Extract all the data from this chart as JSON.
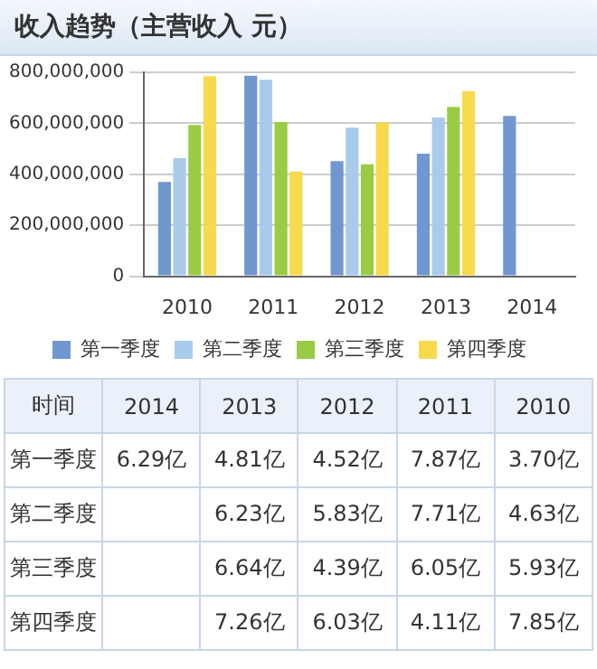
{
  "chart_data": [
    {
      "type": "bar",
      "title": "收入趋势（主营收入  元）",
      "categories": [
        "2010",
        "2011",
        "2012",
        "2013",
        "2014"
      ],
      "series": [
        {
          "name": "第一季度",
          "color": "#7097d0",
          "values": [
            370000000,
            787000000,
            452000000,
            481000000,
            629000000
          ]
        },
        {
          "name": "第二季度",
          "color": "#a9cbeb",
          "values": [
            463000000,
            771000000,
            583000000,
            623000000,
            null
          ]
        },
        {
          "name": "第三季度",
          "color": "#99cc44",
          "values": [
            593000000,
            605000000,
            439000000,
            664000000,
            null
          ]
        },
        {
          "name": "第四季度",
          "color": "#f7d94c",
          "values": [
            785000000,
            411000000,
            603000000,
            726000000,
            null
          ]
        }
      ],
      "ylim": [
        0,
        800000000
      ],
      "yticks": [
        {
          "value": 0,
          "label": "0"
        },
        {
          "value": 200000000,
          "label": "200,000,000"
        },
        {
          "value": 400000000,
          "label": "400,000,000"
        },
        {
          "value": 600000000,
          "label": "600,000,000"
        },
        {
          "value": 800000000,
          "label": "800,000,000"
        }
      ],
      "grid": "y",
      "legend": "bottom"
    },
    {
      "type": "heatmap",
      "xlabel": "时间",
      "categories": [
        "2014",
        "2013",
        "2012",
        "2011",
        "2010"
      ],
      "y_categories": [
        "第一季度",
        "第二季度",
        "第三季度",
        "第四季度"
      ],
      "cells": [
        [
          6.29,
          4.81,
          4.52,
          7.87,
          3.7
        ],
        [
          null,
          6.23,
          5.83,
          7.71,
          4.63
        ],
        [
          null,
          6.64,
          4.39,
          6.05,
          5.93
        ],
        [
          null,
          7.26,
          6.03,
          4.11,
          7.85
        ]
      ],
      "cell_labels": [
        [
          "6.29亿",
          "4.81亿",
          "4.52亿",
          "7.87亿",
          "3.70亿"
        ],
        [
          null,
          "6.23亿",
          "5.83亿",
          "7.71亿",
          "4.63亿"
        ],
        [
          null,
          "6.64亿",
          "4.39亿",
          "6.05亿",
          "5.93亿"
        ],
        [
          null,
          "7.26亿",
          "6.03亿",
          "4.11亿",
          "7.85亿"
        ]
      ]
    }
  ]
}
